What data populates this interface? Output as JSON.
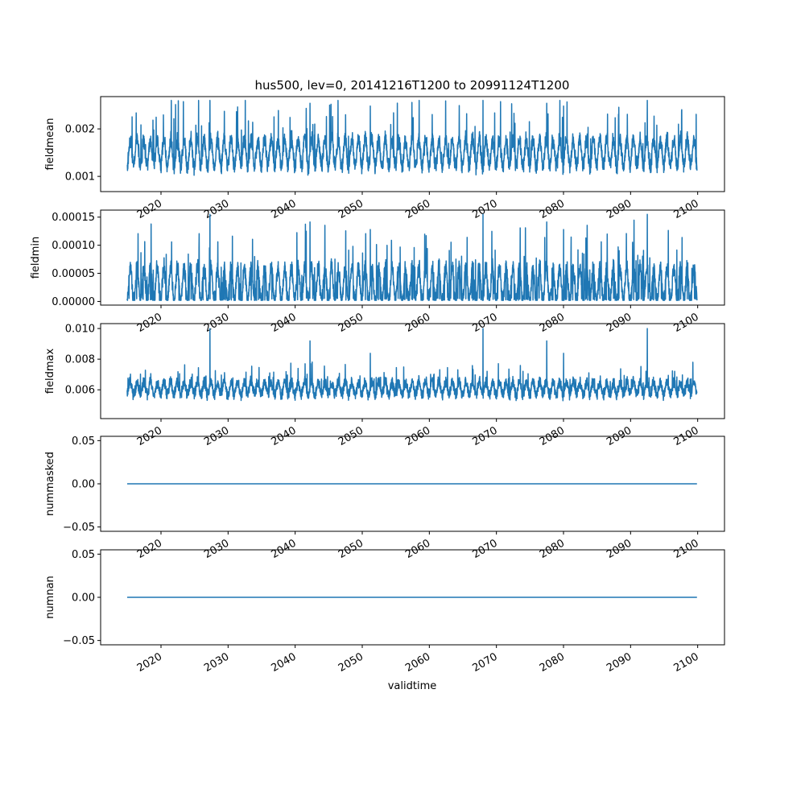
{
  "figure": {
    "title": "hus500, lev=0, 20141216T1200 to 20991124T1200",
    "xlabel": "validtime",
    "line_color": "#1f77b4"
  },
  "chart_data": [
    {
      "type": "line",
      "ylabel": "fieldmean",
      "xlim": [
        2011,
        2104
      ],
      "ylim": [
        0.00068,
        0.00268
      ],
      "yticks": [
        {
          "value": 0.001,
          "label": "0.001"
        },
        {
          "value": 0.002,
          "label": "0.002"
        }
      ],
      "xticks": [
        {
          "value": 2020,
          "label": "2020"
        },
        {
          "value": 2030,
          "label": "2030"
        },
        {
          "value": 2040,
          "label": "2040"
        },
        {
          "value": 2050,
          "label": "2050"
        },
        {
          "value": 2060,
          "label": "2060"
        },
        {
          "value": 2070,
          "label": "2070"
        },
        {
          "value": 2080,
          "label": "2080"
        },
        {
          "value": 2090,
          "label": "2090"
        },
        {
          "value": 2100,
          "label": "2100"
        }
      ],
      "series": [
        {
          "x_start": "2014-12-16",
          "x_end": "2099-11-24",
          "approx_range": [
            0.00075,
            0.0026
          ],
          "typical": [
            0.00115,
            0.00195
          ],
          "seasonal_mean": 0.0015,
          "seasonal_amplitude": 0.00028,
          "noise": 0.00013,
          "peaks": [
            0.0024,
            0.0026
          ]
        }
      ]
    },
    {
      "type": "line",
      "ylabel": "fieldmin",
      "xlim": [
        2011,
        2104
      ],
      "ylim": [
        -6.5e-06,
        0.0001625
      ],
      "yticks": [
        {
          "value": 0.0,
          "label": "0.00000"
        },
        {
          "value": 5e-05,
          "label": "0.00005"
        },
        {
          "value": 0.0001,
          "label": "0.00010"
        },
        {
          "value": 0.00015,
          "label": "0.00015"
        }
      ],
      "xticks": [
        {
          "value": 2020,
          "label": "2020"
        },
        {
          "value": 2030,
          "label": "2030"
        },
        {
          "value": 2040,
          "label": "2040"
        },
        {
          "value": 2050,
          "label": "2050"
        },
        {
          "value": 2060,
          "label": "2060"
        },
        {
          "value": 2070,
          "label": "2070"
        },
        {
          "value": 2080,
          "label": "2080"
        },
        {
          "value": 2090,
          "label": "2090"
        },
        {
          "value": 2100,
          "label": "2100"
        }
      ],
      "series": [
        {
          "x_start": "2014-12-16",
          "x_end": "2099-11-24",
          "approx_range": [
            2e-06,
            0.000155
          ],
          "seasonal_mean": 3e-05,
          "seasonal_amplitude": 3e-05,
          "noise": 1.2e-05,
          "peaks": [
            0.00011,
            0.000155
          ]
        }
      ]
    },
    {
      "type": "line",
      "ylabel": "fieldmax",
      "xlim": [
        2011,
        2104
      ],
      "ylim": [
        0.00412,
        0.01032
      ],
      "yticks": [
        {
          "value": 0.006,
          "label": "0.006"
        },
        {
          "value": 0.008,
          "label": "0.008"
        },
        {
          "value": 0.01,
          "label": "0.010"
        }
      ],
      "xticks": [
        {
          "value": 2020,
          "label": "2020"
        },
        {
          "value": 2030,
          "label": "2030"
        },
        {
          "value": 2040,
          "label": "2040"
        },
        {
          "value": 2050,
          "label": "2050"
        },
        {
          "value": 2060,
          "label": "2060"
        },
        {
          "value": 2070,
          "label": "2070"
        },
        {
          "value": 2080,
          "label": "2080"
        },
        {
          "value": 2090,
          "label": "2090"
        },
        {
          "value": 2100,
          "label": "2100"
        }
      ],
      "series": [
        {
          "x_start": "2014-12-16",
          "x_end": "2099-11-24",
          "approx_range": [
            0.0044,
            0.01
          ],
          "typical": [
            0.0053,
            0.0072
          ],
          "seasonal_mean": 0.0061,
          "seasonal_amplitude": 0.0004,
          "noise": 0.00028,
          "peaks": [
            0.0073,
            0.01
          ]
        }
      ]
    },
    {
      "type": "line",
      "ylabel": "nummasked",
      "xlim": [
        2011,
        2104
      ],
      "ylim": [
        -0.055,
        0.055
      ],
      "yticks": [
        {
          "value": -0.05,
          "label": "−0.05"
        },
        {
          "value": 0.0,
          "label": "0.00"
        },
        {
          "value": 0.05,
          "label": "0.05"
        }
      ],
      "xticks": [
        {
          "value": 2020,
          "label": "2020"
        },
        {
          "value": 2030,
          "label": "2030"
        },
        {
          "value": 2040,
          "label": "2040"
        },
        {
          "value": 2050,
          "label": "2050"
        },
        {
          "value": 2060,
          "label": "2060"
        },
        {
          "value": 2070,
          "label": "2070"
        },
        {
          "value": 2080,
          "label": "2080"
        },
        {
          "value": 2090,
          "label": "2090"
        },
        {
          "value": 2100,
          "label": "2100"
        }
      ],
      "series": [
        {
          "x": [
            "2014-12-16",
            "2099-11-24"
          ],
          "y": [
            0,
            0
          ]
        }
      ]
    },
    {
      "type": "line",
      "ylabel": "numnan",
      "xlim": [
        2011,
        2104
      ],
      "ylim": [
        -0.055,
        0.055
      ],
      "yticks": [
        {
          "value": -0.05,
          "label": "−0.05"
        },
        {
          "value": 0.0,
          "label": "0.00"
        },
        {
          "value": 0.05,
          "label": "0.05"
        }
      ],
      "xticks": [
        {
          "value": 2020,
          "label": "2020"
        },
        {
          "value": 2030,
          "label": "2030"
        },
        {
          "value": 2040,
          "label": "2040"
        },
        {
          "value": 2050,
          "label": "2050"
        },
        {
          "value": 2060,
          "label": "2060"
        },
        {
          "value": 2070,
          "label": "2070"
        },
        {
          "value": 2080,
          "label": "2080"
        },
        {
          "value": 2090,
          "label": "2090"
        },
        {
          "value": 2100,
          "label": "2100"
        }
      ],
      "series": [
        {
          "x": [
            "2014-12-16",
            "2099-11-24"
          ],
          "y": [
            0,
            0
          ]
        }
      ]
    }
  ]
}
